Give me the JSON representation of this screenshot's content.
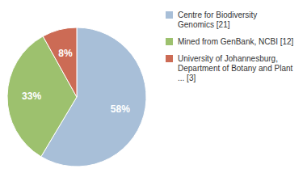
{
  "chart_data": {
    "type": "pie",
    "categories": [
      "Centre for Biodiversity\nGenomics [21]",
      "Mined from GenBank, NCBI [12]",
      "University of Johannesburg,\nDepartment of Botany and Plant\n... [3]"
    ],
    "values": [
      58,
      33,
      8
    ],
    "value_labels": [
      "58%",
      "33%",
      "8%"
    ],
    "colors": [
      "#a8bfd8",
      "#9dc16e",
      "#cc6b55"
    ],
    "data_labels": true
  }
}
